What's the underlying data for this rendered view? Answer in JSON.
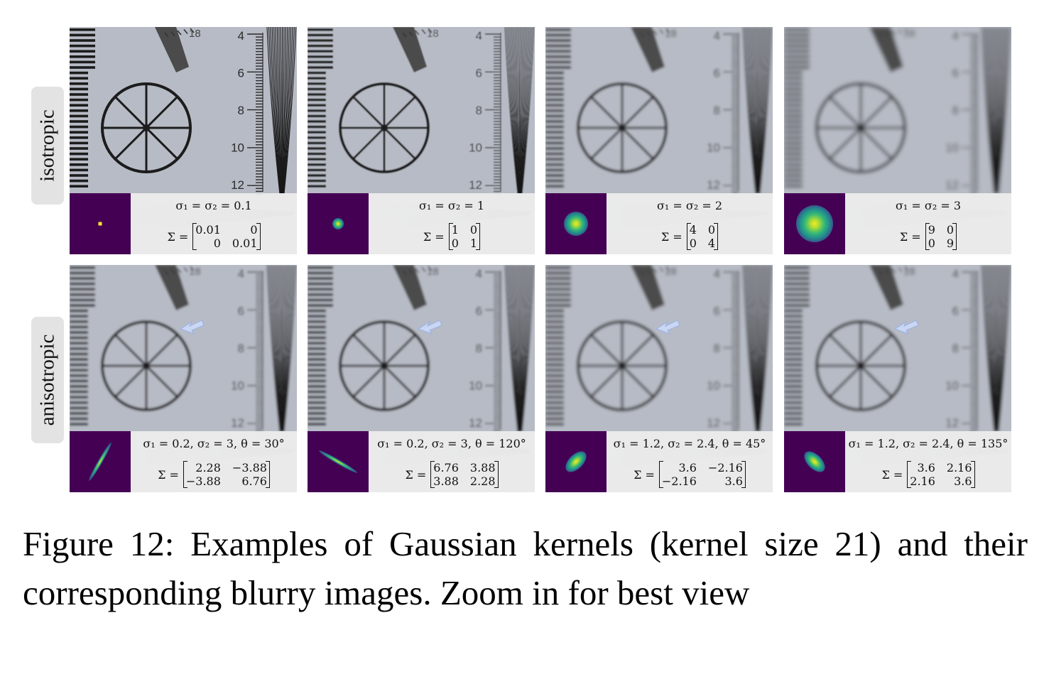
{
  "rows": [
    {
      "label": "isotropic",
      "panels": [
        {
          "params": "σ₁ = σ₂ = 0.1",
          "sigma_label": "Σ =",
          "matrix": [
            "0.01",
            "0",
            "0",
            "0.01"
          ],
          "blur": 0.2
        },
        {
          "params": "σ₁ = σ₂ = 1",
          "sigma_label": "Σ =",
          "matrix": [
            "1",
            "0",
            "0",
            "1"
          ],
          "blur": 0.9
        },
        {
          "params": "σ₁ = σ₂ = 2",
          "sigma_label": "Σ =",
          "matrix": [
            "4",
            "0",
            "0",
            "4"
          ],
          "blur": 1.8
        },
        {
          "params": "σ₁ = σ₂ = 3",
          "sigma_label": "Σ =",
          "matrix": [
            "9",
            "0",
            "0",
            "9"
          ],
          "blur": 2.8
        }
      ]
    },
    {
      "label": "anisotropic",
      "panels": [
        {
          "params": "σ₁ = 0.2, σ₂ = 3, θ = 30°",
          "sigma_label": "Σ =",
          "matrix": [
            "2.28",
            "−3.88",
            "−3.88",
            "6.76"
          ],
          "blur": 1.6
        },
        {
          "params": "σ₁ = 0.2, σ₂ = 3, θ = 120°",
          "sigma_label": "Σ =",
          "matrix": [
            "6.76",
            "3.88",
            "3.88",
            "2.28"
          ],
          "blur": 1.6
        },
        {
          "params": "σ₁ = 1.2, σ₂ = 2.4, θ = 45°",
          "sigma_label": "Σ =",
          "matrix": [
            "3.6",
            "−2.16",
            "−2.16",
            "3.6"
          ],
          "blur": 2.0
        },
        {
          "params": "σ₁ = 1.2, σ₂ = 2.4, θ = 135°",
          "sigma_label": "Σ =",
          "matrix": [
            "3.6",
            "2.16",
            "2.16",
            "3.6"
          ],
          "blur": 2.0
        }
      ]
    }
  ],
  "chart_labels": {
    "scale_numbers": [
      "4",
      "6",
      "8",
      "10",
      "12"
    ],
    "dial_number": "18"
  },
  "caption": "Figure 12: Examples of Gaussian kernels (kernel size 21) and their corresponding blurry images. Zoom in for best view",
  "colors": {
    "kernel_bg": "#440154",
    "kernel_core": "#fde725",
    "kernel_mid": "#35b779",
    "arrow": "#c9d7f5"
  }
}
